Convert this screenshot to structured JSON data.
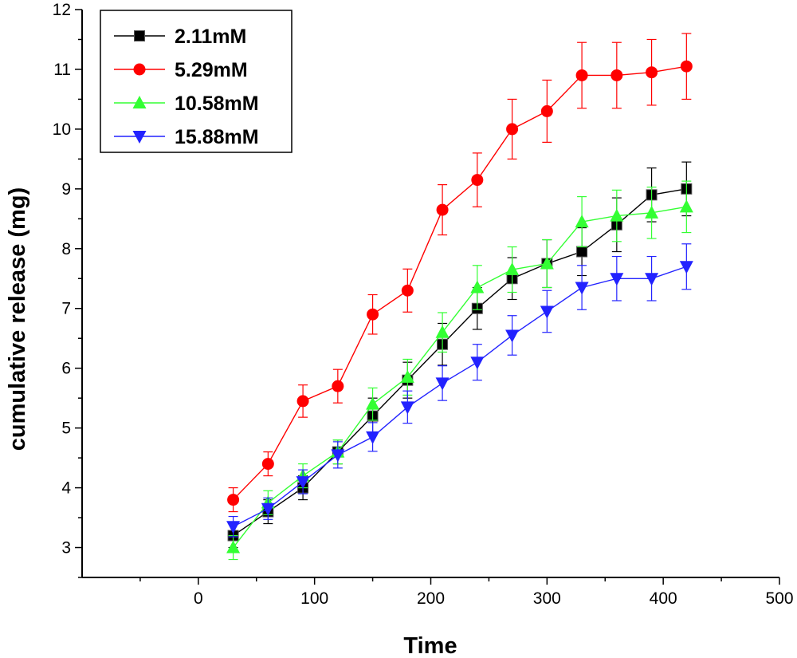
{
  "chart_data": {
    "type": "line",
    "title": "",
    "xlabel": "Time",
    "ylabel": "cumulative release (mg)",
    "xlim": [
      -100,
      500
    ],
    "ylim": [
      2.5,
      12
    ],
    "xticks": [
      "0",
      "100",
      "200",
      "300",
      "400",
      "500"
    ],
    "yticks": [
      "3",
      "4",
      "5",
      "6",
      "7",
      "8",
      "9",
      "10",
      "11",
      "12"
    ],
    "grid": false,
    "legend_position": "top-left",
    "x": [
      30,
      60,
      90,
      120,
      150,
      180,
      210,
      240,
      270,
      300,
      330,
      360,
      390,
      420
    ],
    "series": [
      {
        "name": "2.11mM",
        "color": "#000000",
        "marker": "square",
        "values": [
          3.2,
          3.6,
          4.0,
          4.6,
          5.2,
          5.8,
          6.4,
          7.0,
          7.5,
          7.75,
          7.95,
          8.4,
          8.9,
          9.0
        ],
        "errors": [
          0.2,
          0.2,
          0.2,
          0.2,
          0.3,
          0.3,
          0.35,
          0.35,
          0.35,
          0.4,
          0.4,
          0.45,
          0.45,
          0.45
        ]
      },
      {
        "name": "5.29mM",
        "color": "#ff0000",
        "marker": "circle",
        "values": [
          3.8,
          4.4,
          5.45,
          5.7,
          6.9,
          7.3,
          8.65,
          9.15,
          10.0,
          10.3,
          10.9,
          10.9,
          10.95,
          11.05
        ],
        "errors": [
          0.2,
          0.2,
          0.27,
          0.28,
          0.33,
          0.36,
          0.42,
          0.45,
          0.5,
          0.52,
          0.55,
          0.55,
          0.55,
          0.55
        ]
      },
      {
        "name": "10.58mM",
        "color": "#33ff33",
        "marker": "triangle-up",
        "values": [
          3.0,
          3.75,
          4.2,
          4.6,
          5.4,
          5.85,
          6.6,
          7.35,
          7.65,
          7.75,
          8.45,
          8.55,
          8.6,
          8.7
        ],
        "errors": [
          0.2,
          0.2,
          0.2,
          0.2,
          0.27,
          0.3,
          0.33,
          0.37,
          0.38,
          0.4,
          0.42,
          0.43,
          0.43,
          0.43
        ]
      },
      {
        "name": "15.88mM",
        "color": "#2222ff",
        "marker": "triangle-down",
        "values": [
          3.35,
          3.65,
          4.1,
          4.55,
          4.85,
          5.35,
          5.75,
          6.1,
          6.55,
          6.95,
          7.35,
          7.5,
          7.5,
          7.7
        ],
        "errors": [
          0.17,
          0.18,
          0.2,
          0.22,
          0.24,
          0.27,
          0.29,
          0.3,
          0.33,
          0.35,
          0.37,
          0.37,
          0.37,
          0.38
        ]
      }
    ]
  }
}
